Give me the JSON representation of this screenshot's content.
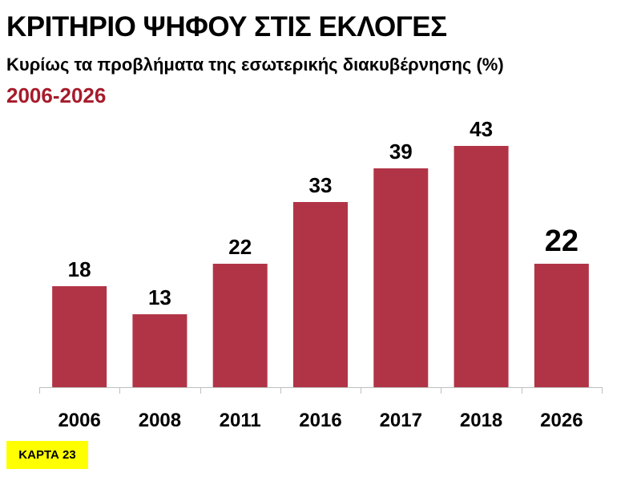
{
  "header": {
    "title": "ΚΡΙΤΗΡΙΟ ΨΗΦΟΥ ΣΤΙΣ ΕΚΛΟΓΕΣ",
    "subtitle": "Κυρίως τα προβλήματα της εσωτερικής διακυβέρνησης (%)",
    "period": "2006-2026"
  },
  "badge": {
    "label": "ΚΑΡΤΑ 23"
  },
  "colors": {
    "bar": "#B13446",
    "period_text": "#A61B2B",
    "badge_bg": "#FFFF00",
    "axis": "#BFBFBF"
  },
  "chart_data": {
    "type": "bar",
    "categories": [
      "2006",
      "2008",
      "2011",
      "2016",
      "2017",
      "2018",
      "2026"
    ],
    "values": [
      18,
      13,
      22,
      33,
      39,
      43,
      22
    ],
    "ylim": [
      0,
      50
    ],
    "grid": false,
    "data_labels": true,
    "highlight_last_label": true
  }
}
